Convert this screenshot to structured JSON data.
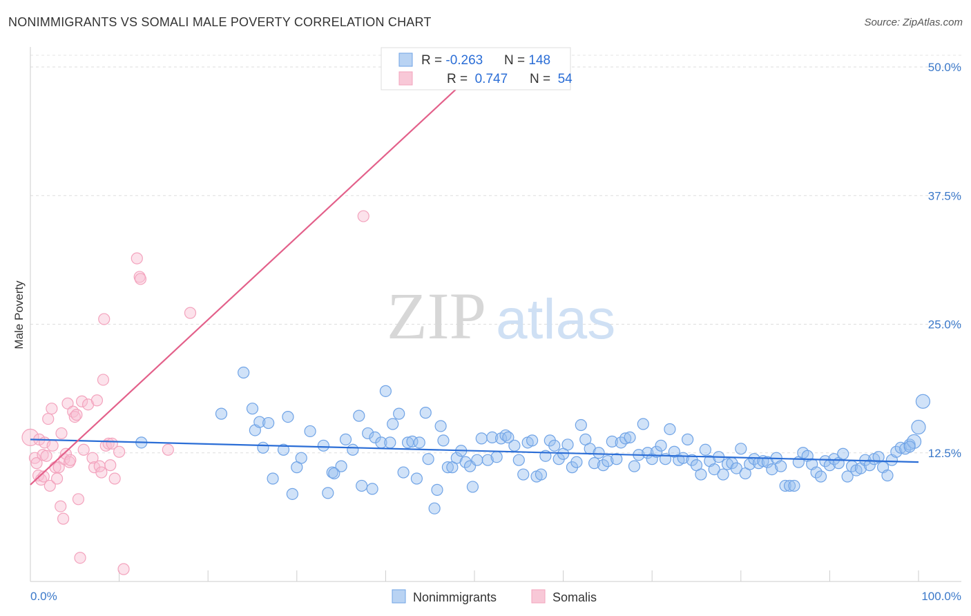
{
  "title": "NONIMMIGRANTS VS SOMALI MALE POVERTY CORRELATION CHART",
  "source": "Source: ZipAtlas.com",
  "watermark": {
    "zip": "ZIP",
    "atlas": "atlas"
  },
  "chart_data": {
    "type": "scatter",
    "ylabel": "Male Poverty",
    "xlim": [
      0,
      100
    ],
    "ylim": [
      0,
      50
    ],
    "x_tick_labels": [
      "0.0%",
      "100.0%"
    ],
    "y_ticks": [
      {
        "value": 12.5,
        "label": "12.5%"
      },
      {
        "value": 25.0,
        "label": "25.0%"
      },
      {
        "value": 37.5,
        "label": "37.5%"
      },
      {
        "value": 50.0,
        "label": "50.0%"
      }
    ],
    "grid": "horizontal-dashed",
    "legend_position": "top-center",
    "colors": {
      "nonimmigrants": "#6fa3e6",
      "nonimmigrants_line": "#2a6dd6",
      "somalis": "#f3a3bd",
      "somalis_line": "#e3608a",
      "tick_text": "#3a78c9"
    },
    "stats": [
      {
        "r_label": "R = ",
        "r": "-0.263",
        "n_label": "N = ",
        "n": "148"
      },
      {
        "r_label": "R = ",
        "r": " 0.747",
        "n_label": "N = ",
        "n": " 54"
      }
    ],
    "series": [
      {
        "name": "Nonimmigrants",
        "trend": {
          "x0": 0,
          "y0": 13.8,
          "x1": 100,
          "y1": 11.6
        },
        "points": [
          [
            12.5,
            13.5
          ],
          [
            21.5,
            16.3
          ],
          [
            24.0,
            20.3
          ],
          [
            25.0,
            16.8
          ],
          [
            25.3,
            14.7
          ],
          [
            25.8,
            15.5
          ],
          [
            26.2,
            13.0
          ],
          [
            26.8,
            15.4
          ],
          [
            27.3,
            10.0
          ],
          [
            28.5,
            12.8
          ],
          [
            29.0,
            16.0
          ],
          [
            29.5,
            8.5
          ],
          [
            30.0,
            11.1
          ],
          [
            30.5,
            12.0
          ],
          [
            31.5,
            14.6
          ],
          [
            33.0,
            13.2
          ],
          [
            33.5,
            8.6
          ],
          [
            34.0,
            10.6
          ],
          [
            34.2,
            10.5
          ],
          [
            35.0,
            11.2
          ],
          [
            35.5,
            13.8
          ],
          [
            36.3,
            12.8
          ],
          [
            37.0,
            16.1
          ],
          [
            37.3,
            9.3
          ],
          [
            38.0,
            14.4
          ],
          [
            38.5,
            9.0
          ],
          [
            38.8,
            14.0
          ],
          [
            39.5,
            13.5
          ],
          [
            40.0,
            18.5
          ],
          [
            40.5,
            13.5
          ],
          [
            40.8,
            15.3
          ],
          [
            41.5,
            16.3
          ],
          [
            42.0,
            10.6
          ],
          [
            42.5,
            13.5
          ],
          [
            43.0,
            13.6
          ],
          [
            43.5,
            10.0
          ],
          [
            43.8,
            13.5
          ],
          [
            44.5,
            16.4
          ],
          [
            44.8,
            11.9
          ],
          [
            45.5,
            7.1
          ],
          [
            45.8,
            8.9
          ],
          [
            46.2,
            15.1
          ],
          [
            46.5,
            13.7
          ],
          [
            47.0,
            11.1
          ],
          [
            47.5,
            11.1
          ],
          [
            48.0,
            12.0
          ],
          [
            48.5,
            12.7
          ],
          [
            49.0,
            11.6
          ],
          [
            49.5,
            11.2
          ],
          [
            49.8,
            9.2
          ],
          [
            50.3,
            11.8
          ],
          [
            50.8,
            13.9
          ],
          [
            51.5,
            11.8
          ],
          [
            52.0,
            14.0
          ],
          [
            52.5,
            12.1
          ],
          [
            53.0,
            13.9
          ],
          [
            53.5,
            14.2
          ],
          [
            53.8,
            14.0
          ],
          [
            54.5,
            13.2
          ],
          [
            55.0,
            11.8
          ],
          [
            55.5,
            10.4
          ],
          [
            56.0,
            13.5
          ],
          [
            56.5,
            13.7
          ],
          [
            57.0,
            10.2
          ],
          [
            57.5,
            10.4
          ],
          [
            58.0,
            12.2
          ],
          [
            58.5,
            13.7
          ],
          [
            59.0,
            13.2
          ],
          [
            59.5,
            11.9
          ],
          [
            60.0,
            12.4
          ],
          [
            60.5,
            13.3
          ],
          [
            61.0,
            11.1
          ],
          [
            61.5,
            11.6
          ],
          [
            62.0,
            15.2
          ],
          [
            62.5,
            13.8
          ],
          [
            63.0,
            12.9
          ],
          [
            63.5,
            11.5
          ],
          [
            64.0,
            12.5
          ],
          [
            64.5,
            11.3
          ],
          [
            65.0,
            11.7
          ],
          [
            65.5,
            13.6
          ],
          [
            66.0,
            11.9
          ],
          [
            66.5,
            13.5
          ],
          [
            67.0,
            13.9
          ],
          [
            67.5,
            14.0
          ],
          [
            68.0,
            11.2
          ],
          [
            68.5,
            12.3
          ],
          [
            69.0,
            15.3
          ],
          [
            69.5,
            12.5
          ],
          [
            70.0,
            11.9
          ],
          [
            70.5,
            12.6
          ],
          [
            71.0,
            13.2
          ],
          [
            71.5,
            11.9
          ],
          [
            72.0,
            14.8
          ],
          [
            72.5,
            12.6
          ],
          [
            73.0,
            11.8
          ],
          [
            73.5,
            12.0
          ],
          [
            74.0,
            13.8
          ],
          [
            74.5,
            11.8
          ],
          [
            75.0,
            11.3
          ],
          [
            75.5,
            10.4
          ],
          [
            76.0,
            12.8
          ],
          [
            76.5,
            11.7
          ],
          [
            77.0,
            10.9
          ],
          [
            77.5,
            12.1
          ],
          [
            78.0,
            10.4
          ],
          [
            78.5,
            11.4
          ],
          [
            79.0,
            11.5
          ],
          [
            79.5,
            11.0
          ],
          [
            80.0,
            12.9
          ],
          [
            80.5,
            10.5
          ],
          [
            81.0,
            11.4
          ],
          [
            81.5,
            11.9
          ],
          [
            82.0,
            11.5
          ],
          [
            82.5,
            11.7
          ],
          [
            83.0,
            11.6
          ],
          [
            83.5,
            10.9
          ],
          [
            84.0,
            12.0
          ],
          [
            84.5,
            11.2
          ],
          [
            85.0,
            9.3
          ],
          [
            85.5,
            9.3
          ],
          [
            86.0,
            9.3
          ],
          [
            86.5,
            11.6
          ],
          [
            87.0,
            12.5
          ],
          [
            87.5,
            12.2
          ],
          [
            88.0,
            11.4
          ],
          [
            88.5,
            10.6
          ],
          [
            89.0,
            10.2
          ],
          [
            89.5,
            11.7
          ],
          [
            90.0,
            11.3
          ],
          [
            90.5,
            11.9
          ],
          [
            91.0,
            11.5
          ],
          [
            91.5,
            12.4
          ],
          [
            92.0,
            10.2
          ],
          [
            92.5,
            11.2
          ],
          [
            93.0,
            10.8
          ],
          [
            93.5,
            11.0
          ],
          [
            94.0,
            11.8
          ],
          [
            94.5,
            11.3
          ],
          [
            95.0,
            11.9
          ],
          [
            95.5,
            12.1
          ],
          [
            96.0,
            11.1
          ],
          [
            96.5,
            10.3
          ],
          [
            97.0,
            11.8
          ],
          [
            97.5,
            12.6
          ],
          [
            98.0,
            13.0
          ],
          [
            98.5,
            12.9
          ],
          [
            99.0,
            13.3
          ],
          [
            99.5,
            13.6
          ],
          [
            100.0,
            15.0
          ],
          [
            100.5,
            17.5
          ],
          [
            99.0,
            13.1
          ]
        ]
      },
      {
        "name": "Somalis",
        "trend": {
          "x0": 0,
          "y0": 9.4,
          "x1": 50,
          "y1": 49.5
        },
        "points": [
          [
            0.0,
            14.0
          ],
          [
            0.5,
            12.0
          ],
          [
            0.7,
            11.5
          ],
          [
            0.9,
            10.3
          ],
          [
            1.0,
            13.8
          ],
          [
            1.2,
            9.9
          ],
          [
            1.4,
            12.3
          ],
          [
            1.5,
            10.2
          ],
          [
            1.6,
            13.5
          ],
          [
            1.8,
            12.2
          ],
          [
            2.0,
            15.8
          ],
          [
            2.2,
            9.3
          ],
          [
            2.4,
            16.8
          ],
          [
            2.5,
            13.2
          ],
          [
            2.8,
            11.1
          ],
          [
            3.0,
            10.0
          ],
          [
            3.2,
            11.1
          ],
          [
            3.4,
            7.3
          ],
          [
            3.5,
            14.4
          ],
          [
            3.7,
            6.1
          ],
          [
            3.8,
            11.9
          ],
          [
            4.0,
            12.4
          ],
          [
            4.2,
            17.3
          ],
          [
            4.4,
            11.6
          ],
          [
            4.5,
            11.8
          ],
          [
            4.8,
            16.5
          ],
          [
            5.0,
            16.0
          ],
          [
            5.2,
            16.2
          ],
          [
            5.4,
            8.0
          ],
          [
            5.6,
            2.3
          ],
          [
            5.8,
            17.5
          ],
          [
            6.0,
            12.8
          ],
          [
            6.5,
            17.2
          ],
          [
            7.0,
            12.0
          ],
          [
            7.2,
            11.1
          ],
          [
            7.5,
            17.6
          ],
          [
            7.8,
            11.2
          ],
          [
            8.0,
            10.6
          ],
          [
            8.2,
            19.6
          ],
          [
            8.3,
            25.5
          ],
          [
            8.5,
            13.2
          ],
          [
            8.8,
            13.4
          ],
          [
            9.0,
            11.3
          ],
          [
            9.2,
            13.4
          ],
          [
            9.5,
            10.0
          ],
          [
            10.0,
            12.6
          ],
          [
            10.5,
            1.2
          ],
          [
            12.0,
            31.4
          ],
          [
            12.3,
            29.6
          ],
          [
            12.4,
            29.4
          ],
          [
            15.5,
            12.8
          ],
          [
            18.0,
            26.1
          ],
          [
            37.5,
            35.5
          ],
          [
            40.5,
            49.4
          ]
        ]
      }
    ],
    "legend": [
      "Nonimmigrants",
      "Somalis"
    ]
  }
}
